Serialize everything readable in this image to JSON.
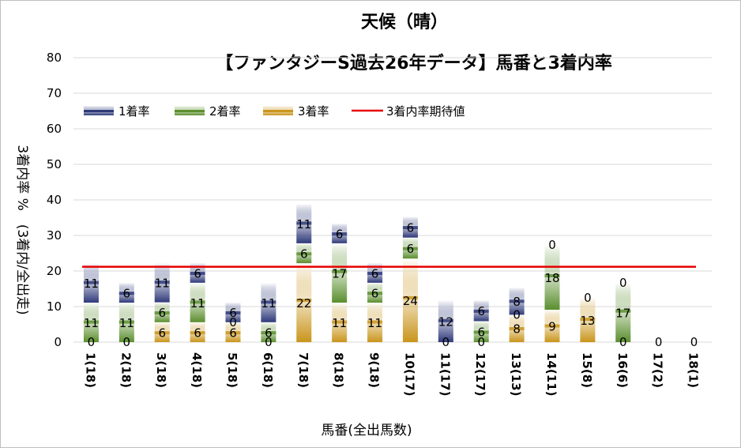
{
  "chart_data": {
    "type": "bar",
    "stacked": true,
    "title": "天候（晴）",
    "subtitle": "【ファンタジーS過去26年データ】馬番と3着内率",
    "xlabel": "馬番(全出馬数)",
    "ylabel": "3着内率 %　(3着内/全出走)",
    "ylim": [
      0,
      80
    ],
    "yticks": [
      0,
      10,
      20,
      30,
      40,
      50,
      60,
      70,
      80
    ],
    "grid": true,
    "legend_position": "top-left",
    "categories": [
      "1(18)",
      "2(18)",
      "3(18)",
      "4(18)",
      "5(18)",
      "6(18)",
      "7(18)",
      "8(18)",
      "9(18)",
      "10(17)",
      "11(17)",
      "12(17)",
      "13(13)",
      "14(11)",
      "15(8)",
      "16(6)",
      "17(2)",
      "18(1)"
    ],
    "series": [
      {
        "name": "3着率",
        "color": "#c9951c",
        "values": [
          0,
          0,
          5.6,
          5.6,
          5.6,
          0,
          22.2,
          11.1,
          11.1,
          23.5,
          0,
          0,
          7.7,
          9.1,
          12.5,
          0,
          0,
          0
        ],
        "labels": [
          "0",
          "0",
          "6",
          "6",
          "6",
          "0",
          "22",
          "11",
          "11",
          "24",
          "0",
          "0",
          "8",
          "9",
          "13",
          "0",
          "",
          ""
        ]
      },
      {
        "name": "2着率",
        "color": "#5b8f2e",
        "values": [
          11.1,
          11.1,
          5.6,
          11.1,
          0,
          5.6,
          5.6,
          16.7,
          5.6,
          5.9,
          0,
          5.9,
          0,
          18.2,
          0,
          16.7,
          0,
          0
        ],
        "labels": [
          "11",
          "11",
          "6",
          "11",
          "0",
          "6",
          "6",
          "17",
          "6",
          "6",
          "",
          "6",
          "0",
          "18",
          "",
          "17",
          "",
          ""
        ]
      },
      {
        "name": "1着率",
        "color": "#2f3a7a",
        "values": [
          11.1,
          5.6,
          11.1,
          5.6,
          5.6,
          11.1,
          11.1,
          5.6,
          5.6,
          5.9,
          11.8,
          5.9,
          7.7,
          0,
          0,
          0,
          0,
          0
        ],
        "labels": [
          "11",
          "6",
          "11",
          "6",
          "6",
          "11",
          "11",
          "6",
          "6",
          "6",
          "12",
          "6",
          "8",
          "0",
          "0",
          "0",
          "0",
          "0"
        ]
      }
    ],
    "expected_line": {
      "name": "3着内率期待値",
      "value": 21.2,
      "color": "#e60000"
    }
  }
}
